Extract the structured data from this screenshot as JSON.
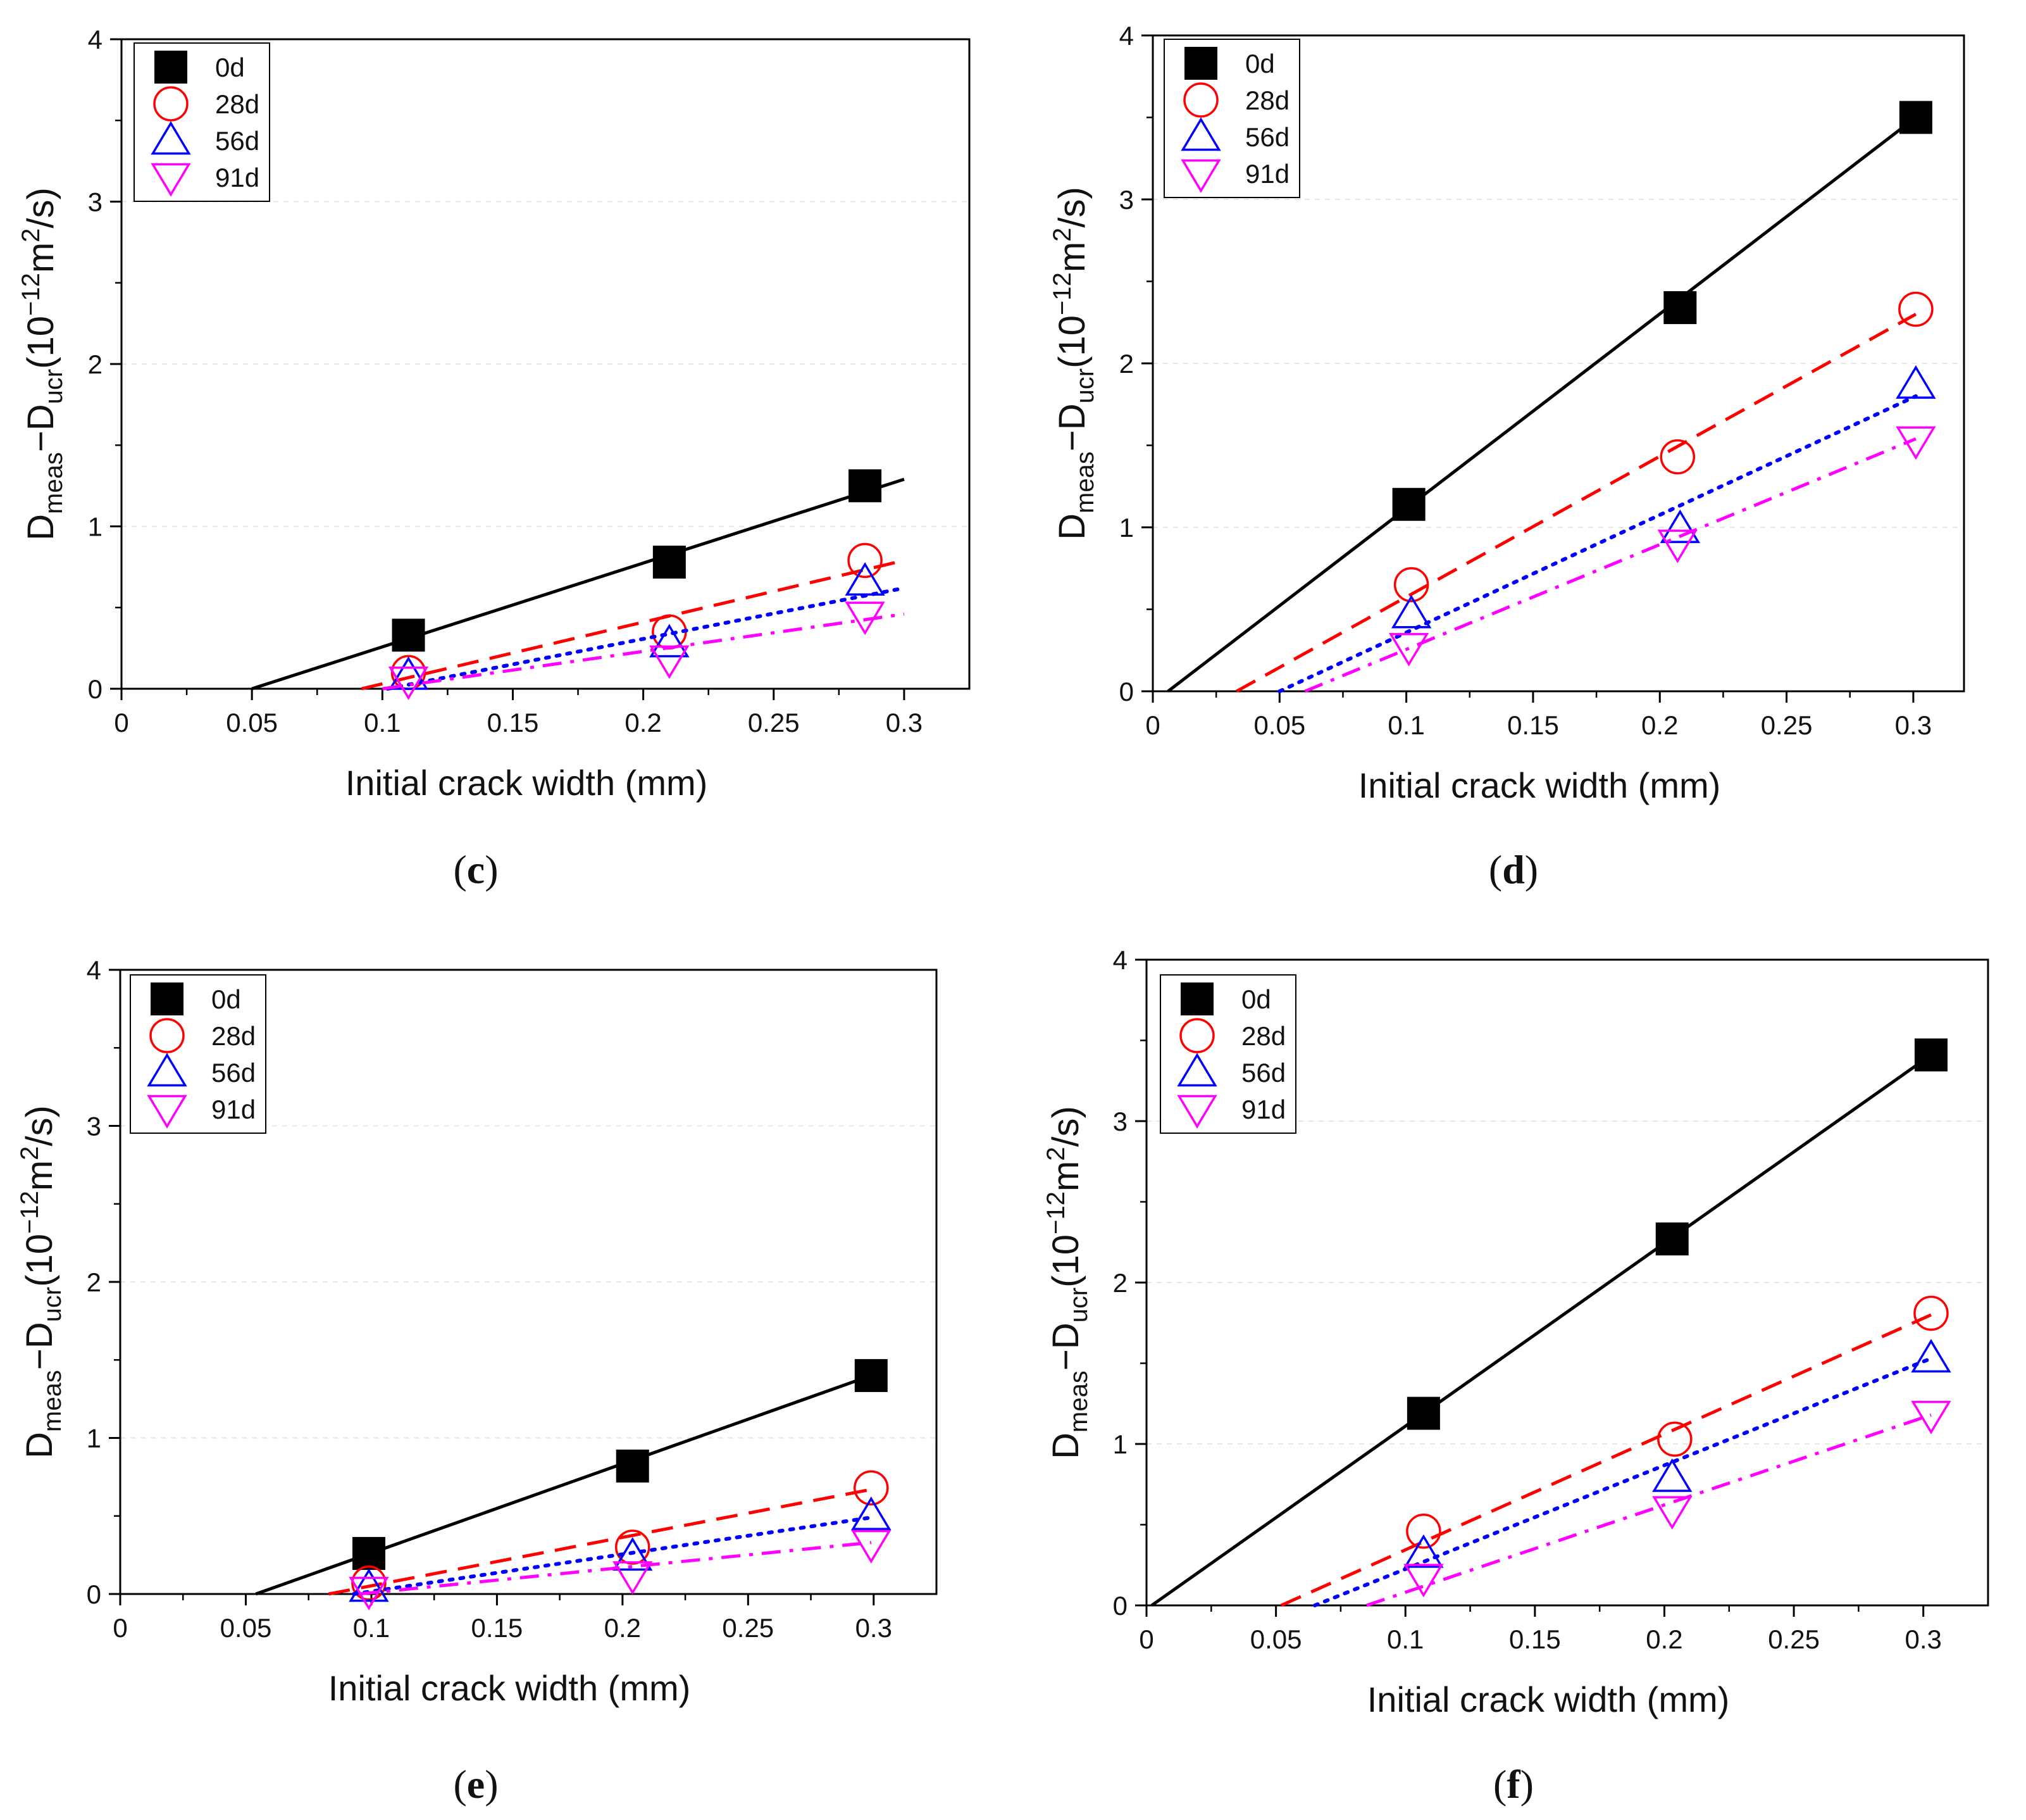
{
  "figure_title": "Dmeas−Ducr vs initial crack width",
  "colors": {
    "0d": "#000000",
    "28d": "#ff0000",
    "56d": "#0000ff",
    "91d": "#ff00ff"
  },
  "chart_data": [
    {
      "type": "scatter",
      "panel_label": "c",
      "title": "",
      "xlabel": "Initial crack width (mm)",
      "ylabel_main": "D",
      "ylabel_sub1": "meas",
      "ylabel_dash": "−D",
      "ylabel_sub2": "ucr",
      "ylabel_units": "(10",
      "ylabel_exp": "−12",
      "ylabel_m": "m",
      "ylabel_sq": "2",
      "ylabel_end": "/s)",
      "xlim": [
        0,
        0.325
      ],
      "ylim": [
        0,
        4
      ],
      "xticks": [
        "0",
        "0.05",
        "0.1",
        "0.15",
        "0.2",
        "0.25",
        "0.3"
      ],
      "xtick_values": [
        0,
        0.05,
        0.1,
        0.15,
        0.2,
        0.25,
        0.3
      ],
      "yticks": [
        "0",
        "1",
        "2",
        "3",
        "4"
      ],
      "ytick_values": [
        0,
        1,
        2,
        3,
        4
      ],
      "series": [
        {
          "name": "0d",
          "marker": "square-filled",
          "line": "solid",
          "x": [
            0.11,
            0.21,
            0.285
          ],
          "y": [
            0.33,
            0.78,
            1.25
          ],
          "fit": [
            [
              0.05,
              0
            ],
            [
              0.3,
              1.29
            ]
          ]
        },
        {
          "name": "28d",
          "marker": "circle",
          "line": "dash",
          "x": [
            0.11,
            0.21,
            0.285
          ],
          "y": [
            0.1,
            0.35,
            0.79
          ],
          "fit": [
            [
              0.092,
              0
            ],
            [
              0.3,
              0.79
            ]
          ]
        },
        {
          "name": "56d",
          "marker": "triangle-up",
          "line": "dot",
          "x": [
            0.11,
            0.21,
            0.285
          ],
          "y": [
            0.08,
            0.28,
            0.66
          ],
          "fit": [
            [
              0.102,
              0
            ],
            [
              0.3,
              0.62
            ]
          ]
        },
        {
          "name": "91d",
          "marker": "triangle-down",
          "line": "dashdot",
          "x": [
            0.11,
            0.21,
            0.285
          ],
          "y": [
            0.05,
            0.18,
            0.45
          ],
          "fit": [
            [
              0.1,
              0
            ],
            [
              0.3,
              0.46
            ]
          ]
        }
      ]
    },
    {
      "type": "scatter",
      "panel_label": "d",
      "title": "",
      "xlabel": "Initial crack width (mm)",
      "ylabel_main": "D",
      "ylabel_sub1": "meas",
      "ylabel_dash": "−D",
      "ylabel_sub2": "ucr",
      "ylabel_units": "(10",
      "ylabel_exp": "−12",
      "ylabel_m": "m",
      "ylabel_sq": "2",
      "ylabel_end": "/s)",
      "xlim": [
        0,
        0.32
      ],
      "ylim": [
        0,
        4
      ],
      "xticks": [
        "0",
        "0.05",
        "0.1",
        "0.15",
        "0.2",
        "0.25",
        "0.3"
      ],
      "xtick_values": [
        0,
        0.05,
        0.1,
        0.15,
        0.2,
        0.25,
        0.3
      ],
      "yticks": [
        "0",
        "1",
        "2",
        "3",
        "4"
      ],
      "ytick_values": [
        0,
        1,
        2,
        3,
        4
      ],
      "series": [
        {
          "name": "0d",
          "marker": "square-filled",
          "line": "solid",
          "x": [
            0.101,
            0.208,
            0.301
          ],
          "y": [
            1.14,
            2.34,
            3.5
          ],
          "fit": [
            [
              0.006,
              0
            ],
            [
              0.301,
              3.5
            ]
          ]
        },
        {
          "name": "28d",
          "marker": "circle",
          "line": "dash",
          "x": [
            0.102,
            0.207,
            0.301
          ],
          "y": [
            0.65,
            1.43,
            2.33
          ],
          "fit": [
            [
              0.033,
              0
            ],
            [
              0.301,
              2.3
            ]
          ]
        },
        {
          "name": "56d",
          "marker": "triangle-up",
          "line": "dot",
          "x": [
            0.102,
            0.208,
            0.301
          ],
          "y": [
            0.47,
            0.99,
            1.87
          ],
          "fit": [
            [
              0.05,
              0
            ],
            [
              0.301,
              1.8
            ]
          ]
        },
        {
          "name": "91d",
          "marker": "triangle-down",
          "line": "dashdot",
          "x": [
            0.101,
            0.207,
            0.301
          ],
          "y": [
            0.27,
            0.9,
            1.53
          ],
          "fit": [
            [
              0.06,
              0
            ],
            [
              0.301,
              1.54
            ]
          ]
        }
      ]
    },
    {
      "type": "scatter",
      "panel_label": "e",
      "title": "",
      "xlabel": "Initial crack width (mm)",
      "ylabel_main": "D",
      "ylabel_sub1": "meas",
      "ylabel_dash": "−D",
      "ylabel_sub2": "ucr",
      "ylabel_units": "(10",
      "ylabel_exp": "−12",
      "ylabel_m": "m",
      "ylabel_sq": "2",
      "ylabel_end": "/s)",
      "xlim": [
        0,
        0.325
      ],
      "ylim": [
        0,
        4
      ],
      "xticks": [
        "0",
        "0.05",
        "0.1",
        "0.15",
        "0.2",
        "0.25",
        "0.3"
      ],
      "xtick_values": [
        0,
        0.05,
        0.1,
        0.15,
        0.2,
        0.25,
        0.3
      ],
      "yticks": [
        "0",
        "1",
        "2",
        "3",
        "4"
      ],
      "ytick_values": [
        0,
        1,
        2,
        3,
        4
      ],
      "series": [
        {
          "name": "0d",
          "marker": "square-filled",
          "line": "solid",
          "x": [
            0.099,
            0.204,
            0.299
          ],
          "y": [
            0.26,
            0.82,
            1.4
          ],
          "fit": [
            [
              0.054,
              0
            ],
            [
              0.299,
              1.4
            ]
          ]
        },
        {
          "name": "28d",
          "marker": "circle",
          "line": "dash",
          "x": [
            0.099,
            0.204,
            0.299
          ],
          "y": [
            0.07,
            0.3,
            0.68
          ],
          "fit": [
            [
              0.083,
              0
            ],
            [
              0.299,
              0.67
            ]
          ]
        },
        {
          "name": "56d",
          "marker": "triangle-up",
          "line": "dot",
          "x": [
            0.099,
            0.204,
            0.299
          ],
          "y": [
            0.04,
            0.24,
            0.5
          ],
          "fit": [
            [
              0.093,
              0
            ],
            [
              0.299,
              0.49
            ]
          ]
        },
        {
          "name": "91d",
          "marker": "triangle-down",
          "line": "dashdot",
          "x": [
            0.099,
            0.204,
            0.299
          ],
          "y": [
            0.02,
            0.12,
            0.32
          ],
          "fit": [
            [
              0.095,
              0
            ],
            [
              0.299,
              0.33
            ]
          ]
        }
      ]
    },
    {
      "type": "scatter",
      "panel_label": "f",
      "title": "",
      "xlabel": "Initial crack width (mm)",
      "ylabel_main": "D",
      "ylabel_sub1": "meas",
      "ylabel_dash": "−D",
      "ylabel_sub2": "ucr",
      "ylabel_units": "(10",
      "ylabel_exp": "−12",
      "ylabel_m": "m",
      "ylabel_sq": "2",
      "ylabel_end": "/s)",
      "xlim": [
        0,
        0.325
      ],
      "ylim": [
        0,
        4
      ],
      "xticks": [
        "0",
        "0.05",
        "0.1",
        "0.15",
        "0.2",
        "0.25",
        "0.3"
      ],
      "xtick_values": [
        0,
        0.05,
        0.1,
        0.15,
        0.2,
        0.25,
        0.3
      ],
      "yticks": [
        "0",
        "1",
        "2",
        "3",
        "4"
      ],
      "ytick_values": [
        0,
        1,
        2,
        3,
        4
      ],
      "series": [
        {
          "name": "0d",
          "marker": "square-filled",
          "line": "solid",
          "x": [
            0.107,
            0.203,
            0.303
          ],
          "y": [
            1.19,
            2.27,
            3.41
          ],
          "fit": [
            [
              0.002,
              0
            ],
            [
              0.303,
              3.41
            ]
          ]
        },
        {
          "name": "28d",
          "marker": "circle",
          "line": "dash",
          "x": [
            0.107,
            0.204,
            0.303
          ],
          "y": [
            0.46,
            1.03,
            1.81
          ],
          "fit": [
            [
              0.052,
              0
            ],
            [
              0.303,
              1.8
            ]
          ]
        },
        {
          "name": "56d",
          "marker": "triangle-up",
          "line": "dot",
          "x": [
            0.107,
            0.203,
            0.303
          ],
          "y": [
            0.32,
            0.79,
            1.53
          ],
          "fit": [
            [
              0.065,
              0
            ],
            [
              0.303,
              1.53
            ]
          ]
        },
        {
          "name": "91d",
          "marker": "triangle-down",
          "line": "dashdot",
          "x": [
            0.107,
            0.203,
            0.303
          ],
          "y": [
            0.17,
            0.59,
            1.18
          ],
          "fit": [
            [
              0.085,
              0
            ],
            [
              0.303,
              1.18
            ]
          ]
        }
      ]
    }
  ]
}
